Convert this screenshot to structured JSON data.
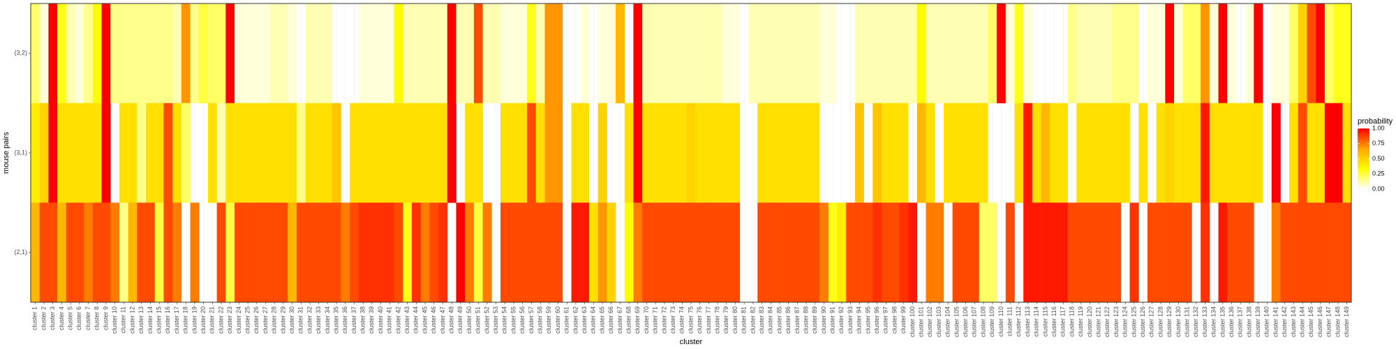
{
  "chart_data": {
    "type": "heatmap",
    "xlabel": "cluster",
    "ylabel": "mouse pairs",
    "legend_title": "probability",
    "legend_ticks": [
      "1.00",
      "0.75",
      "0.50",
      "0.25",
      "0.00"
    ],
    "legend_values": [
      1.0,
      0.75,
      0.5,
      0.25,
      0.0
    ],
    "legend_position": "right",
    "color_scale": [
      "#ffffff",
      "#ffff00",
      "#ffa500",
      "#ff0000"
    ],
    "value_range": [
      0,
      1
    ],
    "grid": true,
    "rows": [
      "(3,2)",
      "(3,1)",
      "(2,1)"
    ],
    "categories": [
      "cluster 1",
      "cluster 2",
      "cluster 3",
      "cluster 4",
      "cluster 5",
      "cluster 6",
      "cluster 7",
      "cluster 8",
      "cluster 9",
      "cluster 10",
      "cluster 11",
      "cluster 12",
      "cluster 13",
      "cluster 14",
      "cluster 15",
      "cluster 16",
      "cluster 17",
      "cluster 18",
      "cluster 19",
      "cluster 20",
      "cluster 21",
      "cluster 22",
      "cluster 23",
      "cluster 24",
      "cluster 25",
      "cluster 26",
      "cluster 27",
      "cluster 28",
      "cluster 29",
      "cluster 30",
      "cluster 31",
      "cluster 32",
      "cluster 33",
      "cluster 34",
      "cluster 35",
      "cluster 36",
      "cluster 37",
      "cluster 38",
      "cluster 39",
      "cluster 40",
      "cluster 41",
      "cluster 42",
      "cluster 43",
      "cluster 44",
      "cluster 45",
      "cluster 46",
      "cluster 47",
      "cluster 48",
      "cluster 49",
      "cluster 50",
      "cluster 51",
      "cluster 52",
      "cluster 53",
      "cluster 54",
      "cluster 55",
      "cluster 56",
      "cluster 57",
      "cluster 58",
      "cluster 59",
      "cluster 60",
      "cluster 61",
      "cluster 62",
      "cluster 63",
      "cluster 64",
      "cluster 65",
      "cluster 66",
      "cluster 67",
      "cluster 68",
      "cluster 69",
      "cluster 70",
      "cluster 71",
      "cluster 72",
      "cluster 73",
      "cluster 74",
      "cluster 75",
      "cluster 76",
      "cluster 77",
      "cluster 78",
      "cluster 79",
      "cluster 80",
      "cluster 81",
      "cluster 82",
      "cluster 83",
      "cluster 84",
      "cluster 85",
      "cluster 86",
      "cluster 87",
      "cluster 88",
      "cluster 89",
      "cluster 90",
      "cluster 91",
      "cluster 92",
      "cluster 93",
      "cluster 94",
      "cluster 95",
      "cluster 96",
      "cluster 97",
      "cluster 98",
      "cluster 99",
      "cluster 100",
      "cluster 101",
      "cluster 102",
      "cluster 103",
      "cluster 104",
      "cluster 105",
      "cluster 106",
      "cluster 107",
      "cluster 108",
      "cluster 109",
      "cluster 110",
      "cluster 111",
      "cluster 112",
      "cluster 113",
      "cluster 114",
      "cluster 115",
      "cluster 116",
      "cluster 117",
      "cluster 118",
      "cluster 119",
      "cluster 120",
      "cluster 121",
      "cluster 122",
      "cluster 123",
      "cluster 124",
      "cluster 125",
      "cluster 126",
      "cluster 127",
      "cluster 128",
      "cluster 129",
      "cluster 130",
      "cluster 131",
      "cluster 132",
      "cluster 133",
      "cluster 134",
      "cluster 135",
      "cluster 136",
      "cluster 137",
      "cluster 138",
      "cluster 139",
      "cluster 140",
      "cluster 141",
      "cluster 142",
      "cluster 143",
      "cluster 144",
      "cluster 145",
      "cluster 146",
      "cluster 147",
      "cluster 148",
      "cluster 149"
    ],
    "values": [
      [
        0.2,
        0.05,
        1.0,
        0.3,
        0.1,
        0.05,
        0.15,
        0.35,
        1.0,
        0.15,
        0.15,
        0.15,
        0.15,
        0.15,
        0.15,
        0.15,
        0.1,
        0.7,
        0.15,
        0.25,
        0.2,
        0.2,
        1.0,
        0.05,
        0.05,
        0.05,
        0.05,
        0.1,
        0.1,
        0.05,
        0.0,
        0.1,
        0.1,
        0.1,
        0.0,
        0.0,
        0.0,
        0.05,
        0.05,
        0.05,
        0.05,
        0.35,
        0.1,
        0.1,
        0.1,
        0.1,
        0.1,
        1.0,
        0.1,
        0.1,
        0.85,
        0.1,
        0.1,
        0.05,
        0.05,
        0.05,
        0.3,
        0.1,
        0.7,
        0.7,
        0.0,
        0.0,
        0.05,
        0.0,
        0.05,
        0.05,
        0.6,
        0.0,
        1.0,
        0.1,
        0.1,
        0.1,
        0.1,
        0.1,
        0.1,
        0.1,
        0.1,
        0.1,
        0.05,
        0.05,
        0.0,
        0.1,
        0.1,
        0.1,
        0.1,
        0.1,
        0.1,
        0.1,
        0.1,
        0.05,
        0.05,
        0.0,
        0.0,
        0.1,
        0.1,
        0.1,
        0.1,
        0.1,
        0.1,
        0.1,
        0.35,
        0.1,
        0.1,
        0.1,
        0.1,
        0.1,
        0.1,
        0.1,
        0.2,
        1.0,
        0.05,
        0.3,
        0.05,
        0.0,
        0.0,
        0.0,
        0.0,
        0.15,
        0.1,
        0.1,
        0.1,
        0.1,
        0.15,
        0.15,
        0.15,
        0.0,
        0.05,
        0.05,
        1.0,
        0.05,
        0.2,
        0.2,
        0.7,
        0.05,
        1.0,
        0.05,
        0.0,
        0.05,
        1.0,
        0.0,
        0.05,
        0.05,
        0.2,
        0.5,
        0.85,
        1.0,
        0.2,
        0.3,
        0.3
      ],
      [
        0.4,
        0.5,
        1.0,
        0.45,
        0.45,
        0.45,
        0.45,
        0.45,
        1.0,
        0.0,
        0.45,
        0.45,
        0.15,
        0.45,
        0.45,
        0.85,
        0.45,
        0.2,
        0.0,
        0.0,
        0.45,
        0.1,
        0.45,
        0.45,
        0.45,
        0.45,
        0.45,
        0.45,
        0.45,
        0.45,
        0.15,
        0.45,
        0.45,
        0.45,
        0.55,
        0.0,
        0.45,
        0.45,
        0.45,
        0.45,
        0.45,
        0.45,
        0.45,
        0.45,
        0.45,
        0.45,
        0.45,
        1.0,
        0.0,
        0.45,
        0.45,
        0.0,
        0.0,
        0.45,
        0.45,
        0.45,
        0.85,
        0.45,
        0.7,
        0.7,
        0.0,
        0.45,
        0.45,
        0.0,
        0.5,
        0.0,
        0.0,
        0.45,
        1.0,
        0.45,
        0.45,
        0.45,
        0.45,
        0.45,
        0.5,
        0.45,
        0.45,
        0.45,
        0.45,
        0.45,
        0.0,
        0.0,
        0.45,
        0.45,
        0.45,
        0.45,
        0.45,
        0.45,
        0.45,
        0.0,
        0.0,
        0.0,
        0.0,
        0.55,
        0.0,
        0.55,
        0.45,
        0.45,
        0.45,
        0.0,
        0.6,
        0.45,
        0.0,
        0.45,
        0.45,
        0.45,
        0.45,
        0.45,
        0.0,
        0.0,
        0.0,
        0.45,
        0.95,
        0.45,
        0.6,
        0.45,
        0.45,
        0.0,
        0.45,
        0.45,
        0.45,
        0.45,
        0.45,
        0.45,
        0.0,
        0.45,
        0.0,
        0.45,
        0.5,
        0.45,
        0.45,
        0.45,
        0.95,
        0.45,
        0.45,
        0.45,
        0.45,
        0.45,
        0.45,
        0.0,
        1.0,
        0.0,
        0.45,
        0.85,
        0.45,
        0.45,
        1.0,
        1.0,
        0.45
      ],
      [
        0.6,
        0.85,
        0.85,
        0.6,
        0.85,
        0.85,
        0.75,
        0.85,
        0.85,
        0.75,
        0.15,
        0.6,
        0.85,
        0.85,
        0.25,
        0.85,
        0.75,
        0.0,
        0.75,
        0.0,
        0.0,
        0.85,
        0.25,
        0.85,
        0.85,
        0.85,
        0.85,
        0.85,
        0.85,
        0.6,
        0.85,
        0.85,
        0.85,
        0.85,
        0.85,
        0.75,
        0.85,
        0.9,
        0.9,
        0.9,
        0.9,
        0.85,
        0.3,
        0.9,
        0.75,
        0.85,
        0.9,
        0.0,
        1.0,
        0.75,
        0.25,
        0.75,
        0.0,
        0.85,
        0.85,
        0.85,
        0.85,
        0.85,
        0.85,
        0.85,
        0.0,
        0.95,
        0.95,
        0.45,
        0.7,
        0.5,
        0.0,
        0.35,
        0.75,
        0.85,
        0.85,
        0.85,
        0.85,
        0.85,
        0.85,
        0.85,
        0.85,
        0.85,
        0.85,
        0.85,
        0.0,
        0.0,
        0.85,
        0.85,
        0.85,
        0.85,
        0.85,
        0.85,
        0.85,
        0.75,
        0.3,
        0.4,
        0.85,
        0.85,
        0.85,
        0.9,
        0.85,
        0.85,
        0.9,
        0.95,
        0.0,
        0.75,
        0.75,
        0.0,
        0.85,
        0.85,
        0.85,
        0.2,
        0.2,
        0.0,
        0.85,
        0.0,
        0.95,
        0.95,
        0.95,
        0.95,
        0.95,
        0.85,
        0.85,
        0.85,
        0.85,
        0.85,
        0.85,
        0.0,
        0.9,
        0.0,
        0.85,
        0.85,
        0.85,
        0.85,
        0.85,
        0.0,
        0.9,
        0.0,
        0.95,
        0.85,
        0.85,
        0.85,
        0.0,
        0.0,
        0.75,
        0.85,
        0.85,
        0.85,
        0.85,
        0.85,
        0.85,
        0.85,
        0.85
      ]
    ]
  }
}
